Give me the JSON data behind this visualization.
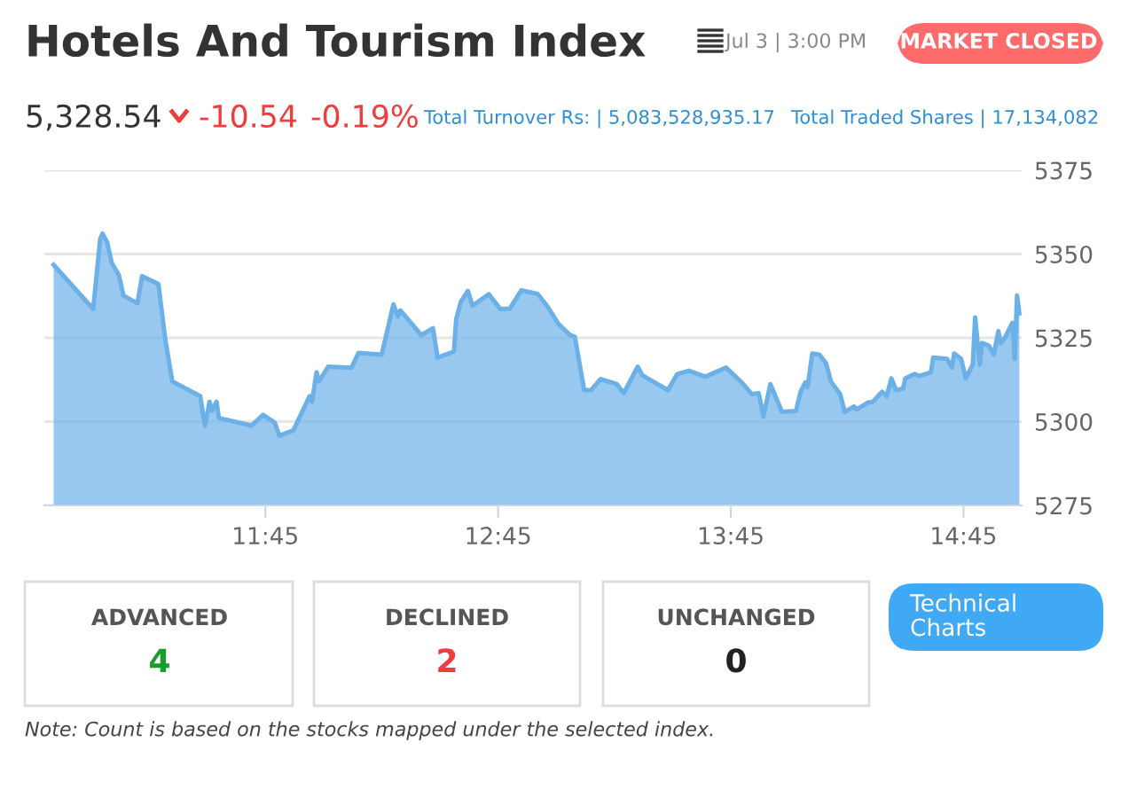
{
  "chart_data": {
    "type": "area",
    "title": "Hotels And Tourism Index",
    "subtitle": "Jul 3 | 3:00 PM",
    "annotations": [
      "MARKET CLOSED",
      "5,328.54",
      "-10.54",
      "-0.19%",
      "Total Turnover Rs: | 5,083,528,935.17",
      "Total Traded Shares | 17,134,082",
      "ADVANCED",
      "4",
      "DECLINED",
      "2",
      "UNCHANGED",
      "0",
      "Technical Charts",
      "Note: Count is based on the stocks mapped under the selected index."
    ],
    "x": [
      10.84,
      11.01,
      11.04,
      11.05,
      11.07,
      11.09,
      11.12,
      11.14,
      11.2,
      11.22,
      11.29,
      11.32,
      11.35,
      11.47,
      11.49,
      11.51,
      11.52,
      11.54,
      11.55,
      11.69,
      11.74,
      11.79,
      11.81,
      11.87,
      11.94,
      11.95,
      11.97,
      11.98,
      12.02,
      12.12,
      12.15,
      12.25,
      12.3,
      12.32,
      12.33,
      12.42,
      12.47,
      12.49,
      12.56,
      12.57,
      12.59,
      12.62,
      12.64,
      12.71,
      12.76,
      12.8,
      12.85,
      12.92,
      12.96,
      13.01,
      13.06,
      13.08,
      13.12,
      13.15,
      13.19,
      13.26,
      13.29,
      13.35,
      13.37,
      13.48,
      13.52,
      13.57,
      13.64,
      13.73,
      13.8,
      13.84,
      13.87,
      13.89,
      13.92,
      13.97,
      14.03,
      14.05,
      14.07,
      14.08,
      14.1,
      14.13,
      14.16,
      14.18,
      14.22,
      14.24,
      14.28,
      14.29,
      14.34,
      14.36,
      14.4,
      14.42,
      14.44,
      14.46,
      14.49,
      14.5,
      14.54,
      14.56,
      14.61,
      14.62,
      14.68,
      14.7,
      14.71,
      14.74,
      14.76,
      14.79,
      14.8,
      14.82,
      14.83,
      14.86,
      14.88,
      14.9,
      14.91,
      14.93,
      14.96,
      14.97,
      14.98,
      14.99
    ],
    "series": [
      {
        "color": "#6cb0e8",
        "values": [
          5346.8,
          5333.6,
          5354.4,
          5356.1,
          5353.5,
          5347.3,
          5343.8,
          5337.6,
          5335.3,
          5343.4,
          5341.1,
          5324.4,
          5312.0,
          5307.6,
          5298.8,
          5305.9,
          5303.2,
          5305.9,
          5301.1,
          5298.8,
          5302.0,
          5299.7,
          5295.8,
          5297.4,
          5307.6,
          5305.9,
          5314.7,
          5312.0,
          5316.4,
          5316.1,
          5320.5,
          5320.0,
          5335.0,
          5331.4,
          5333.2,
          5325.8,
          5327.9,
          5319.1,
          5320.9,
          5330.6,
          5335.8,
          5339.0,
          5334.6,
          5338.0,
          5333.6,
          5333.7,
          5339.2,
          5338.1,
          5334.6,
          5329.1,
          5325.8,
          5325.3,
          5309.4,
          5309.4,
          5312.7,
          5311.2,
          5308.5,
          5316.4,
          5313.8,
          5309.4,
          5314.2,
          5315.2,
          5313.4,
          5316.1,
          5311.5,
          5308.2,
          5308.5,
          5301.5,
          5311.2,
          5302.9,
          5303.2,
          5308.9,
          5311.7,
          5310.3,
          5320.3,
          5320.0,
          5317.3,
          5312.0,
          5308.2,
          5302.9,
          5304.5,
          5303.6,
          5305.7,
          5305.9,
          5308.9,
          5307.6,
          5312.9,
          5309.4,
          5309.9,
          5312.9,
          5314.2,
          5313.6,
          5314.7,
          5319.1,
          5318.7,
          5316.1,
          5320.3,
          5318.7,
          5312.9,
          5317.0,
          5331.1,
          5317.0,
          5323.5,
          5322.6,
          5320.0,
          5327.0,
          5323.5,
          5325.3,
          5329.5,
          5318.7,
          5337.6,
          5332.3
        ]
      }
    ],
    "xlim": [
      10.8,
      15.0
    ],
    "xticks": [
      {
        "value": 11.75,
        "label": "11:45"
      },
      {
        "value": 12.75,
        "label": "12:45"
      },
      {
        "value": 13.75,
        "label": "13:45"
      },
      {
        "value": 14.75,
        "label": "14:45"
      }
    ],
    "ylim": [
      5275,
      5375
    ],
    "yticks": [
      5275,
      5300,
      5325,
      5350,
      5375
    ],
    "grid": "y",
    "line_style": "solid"
  }
}
